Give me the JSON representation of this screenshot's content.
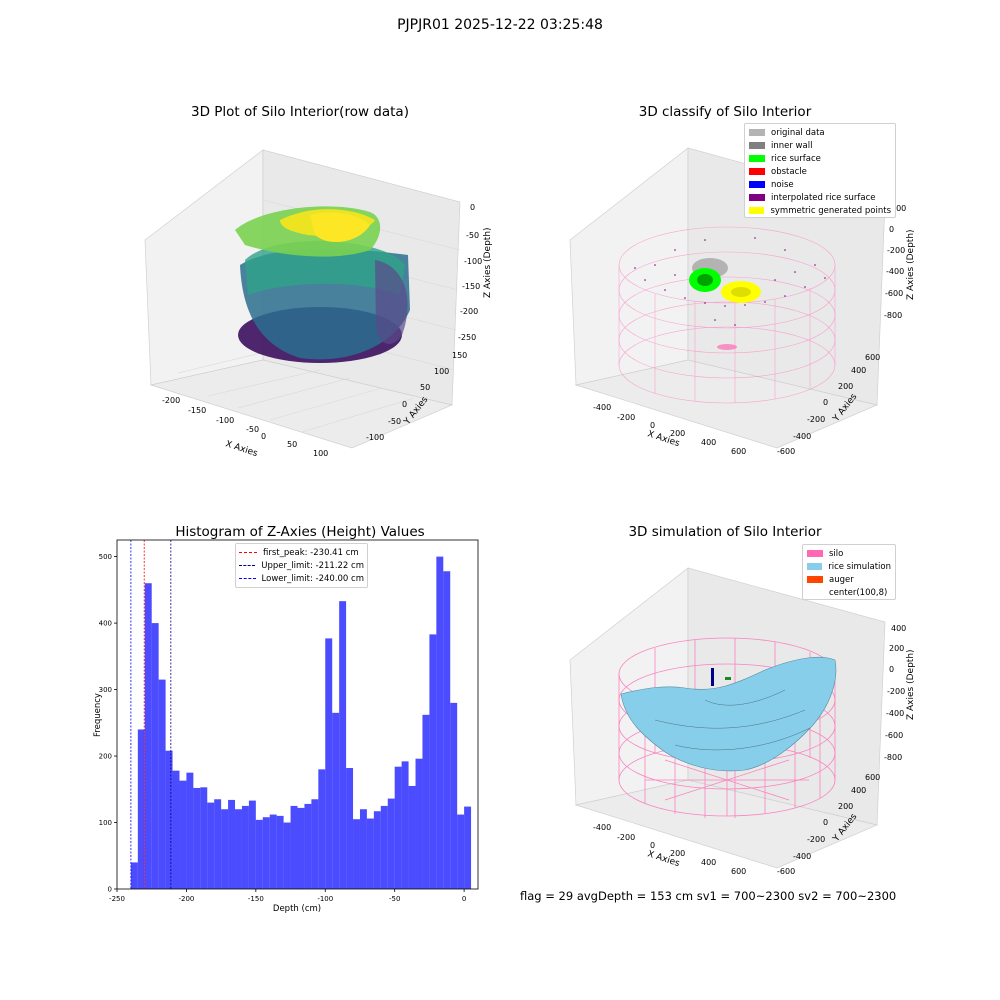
{
  "figure": {
    "suptitle": "PJPJR01 2025-12-22 03:25:48",
    "footer": "flag = 29  avgDepth = 153 cm  sv1 = 700~2300  sv2 = 700~2300"
  },
  "panels": {
    "raw": {
      "title": "3D Plot of Silo Interior(row data)",
      "xlabel": "X Axies",
      "ylabel": "Y Axies",
      "zlabel": "Z Axies (Depth)",
      "xticks": [
        "-200",
        "-150",
        "-100",
        "-50",
        "0",
        "50",
        "100"
      ],
      "yticks": [
        "-100",
        "-50",
        "0",
        "50",
        "100",
        "150"
      ],
      "zticks": [
        "0",
        "-50",
        "-100",
        "-150",
        "-200",
        "-250"
      ]
    },
    "classify": {
      "title": "3D classify of Silo Interior",
      "xlabel": "X Axies",
      "ylabel": "Y Axies",
      "zlabel": "Z Axies (Depth)",
      "xticks": [
        "-400",
        "-200",
        "0",
        "200",
        "400",
        "600"
      ],
      "yticks": [
        "-600",
        "-400",
        "-200",
        "0",
        "200",
        "400",
        "600"
      ],
      "zticks": [
        "200",
        "0",
        "-200",
        "-400",
        "-600",
        "-800"
      ],
      "legend": [
        {
          "label": "original data",
          "color": "#b3b3b3"
        },
        {
          "label": "inner wall",
          "color": "#808080"
        },
        {
          "label": "rice surface",
          "color": "#00ff00"
        },
        {
          "label": "obstacle",
          "color": "#ff0000"
        },
        {
          "label": "noise",
          "color": "#0000ff"
        },
        {
          "label": "interpolated rice surface",
          "color": "#800080"
        },
        {
          "label": "symmetric generated points",
          "color": "#ffff00"
        }
      ]
    },
    "simulation": {
      "title": "3D simulation of Silo Interior",
      "xlabel": "X Axies",
      "ylabel": "Y Axies",
      "zlabel": "Z Axies (Depth)",
      "xticks": [
        "-400",
        "-200",
        "0",
        "200",
        "400",
        "600"
      ],
      "yticks": [
        "-600",
        "-400",
        "-200",
        "0",
        "200",
        "400",
        "600"
      ],
      "zticks": [
        "400",
        "200",
        "0",
        "-200",
        "-400",
        "-600",
        "-800"
      ],
      "legend": [
        {
          "label": "silo",
          "color": "#ff69b4"
        },
        {
          "label": "rice simulation",
          "color": "#87ceeb"
        },
        {
          "label": "auger",
          "color": "#ff4500"
        },
        {
          "label": "center(100,8)",
          "color": ""
        }
      ]
    }
  },
  "chart_data": {
    "type": "bar",
    "title": "Histogram of Z-Axies (Height) Values",
    "xlabel": "Depth (cm)",
    "ylabel": "Frequency",
    "xlim": [
      -250,
      10
    ],
    "ylim": [
      0,
      525
    ],
    "xticks": [
      -250,
      -200,
      -150,
      -100,
      -50,
      0
    ],
    "yticks": [
      0,
      100,
      200,
      300,
      400,
      500
    ],
    "bar_color": "#0000ff",
    "bin_start": -240,
    "bin_width": 5,
    "values": [
      40,
      240,
      460,
      400,
      315,
      208,
      178,
      163,
      175,
      152,
      153,
      130,
      135,
      120,
      134,
      120,
      125,
      133,
      104,
      108,
      112,
      110,
      100,
      125,
      122,
      128,
      135,
      180,
      377,
      265,
      433,
      182,
      105,
      120,
      106,
      117,
      125,
      136,
      184,
      192,
      155,
      196,
      262,
      383,
      500,
      478,
      280,
      112,
      124
    ],
    "lines": [
      {
        "label": "first_peak: -230.41 cm",
        "x": -230.41,
        "color": "#ff0000"
      },
      {
        "label": "Upper_limit: -211.22 cm",
        "x": -211.22,
        "color": "#00008b"
      },
      {
        "label": "Lower_limit: -240.00 cm",
        "x": -240.0,
        "color": "#0000ff"
      }
    ]
  }
}
